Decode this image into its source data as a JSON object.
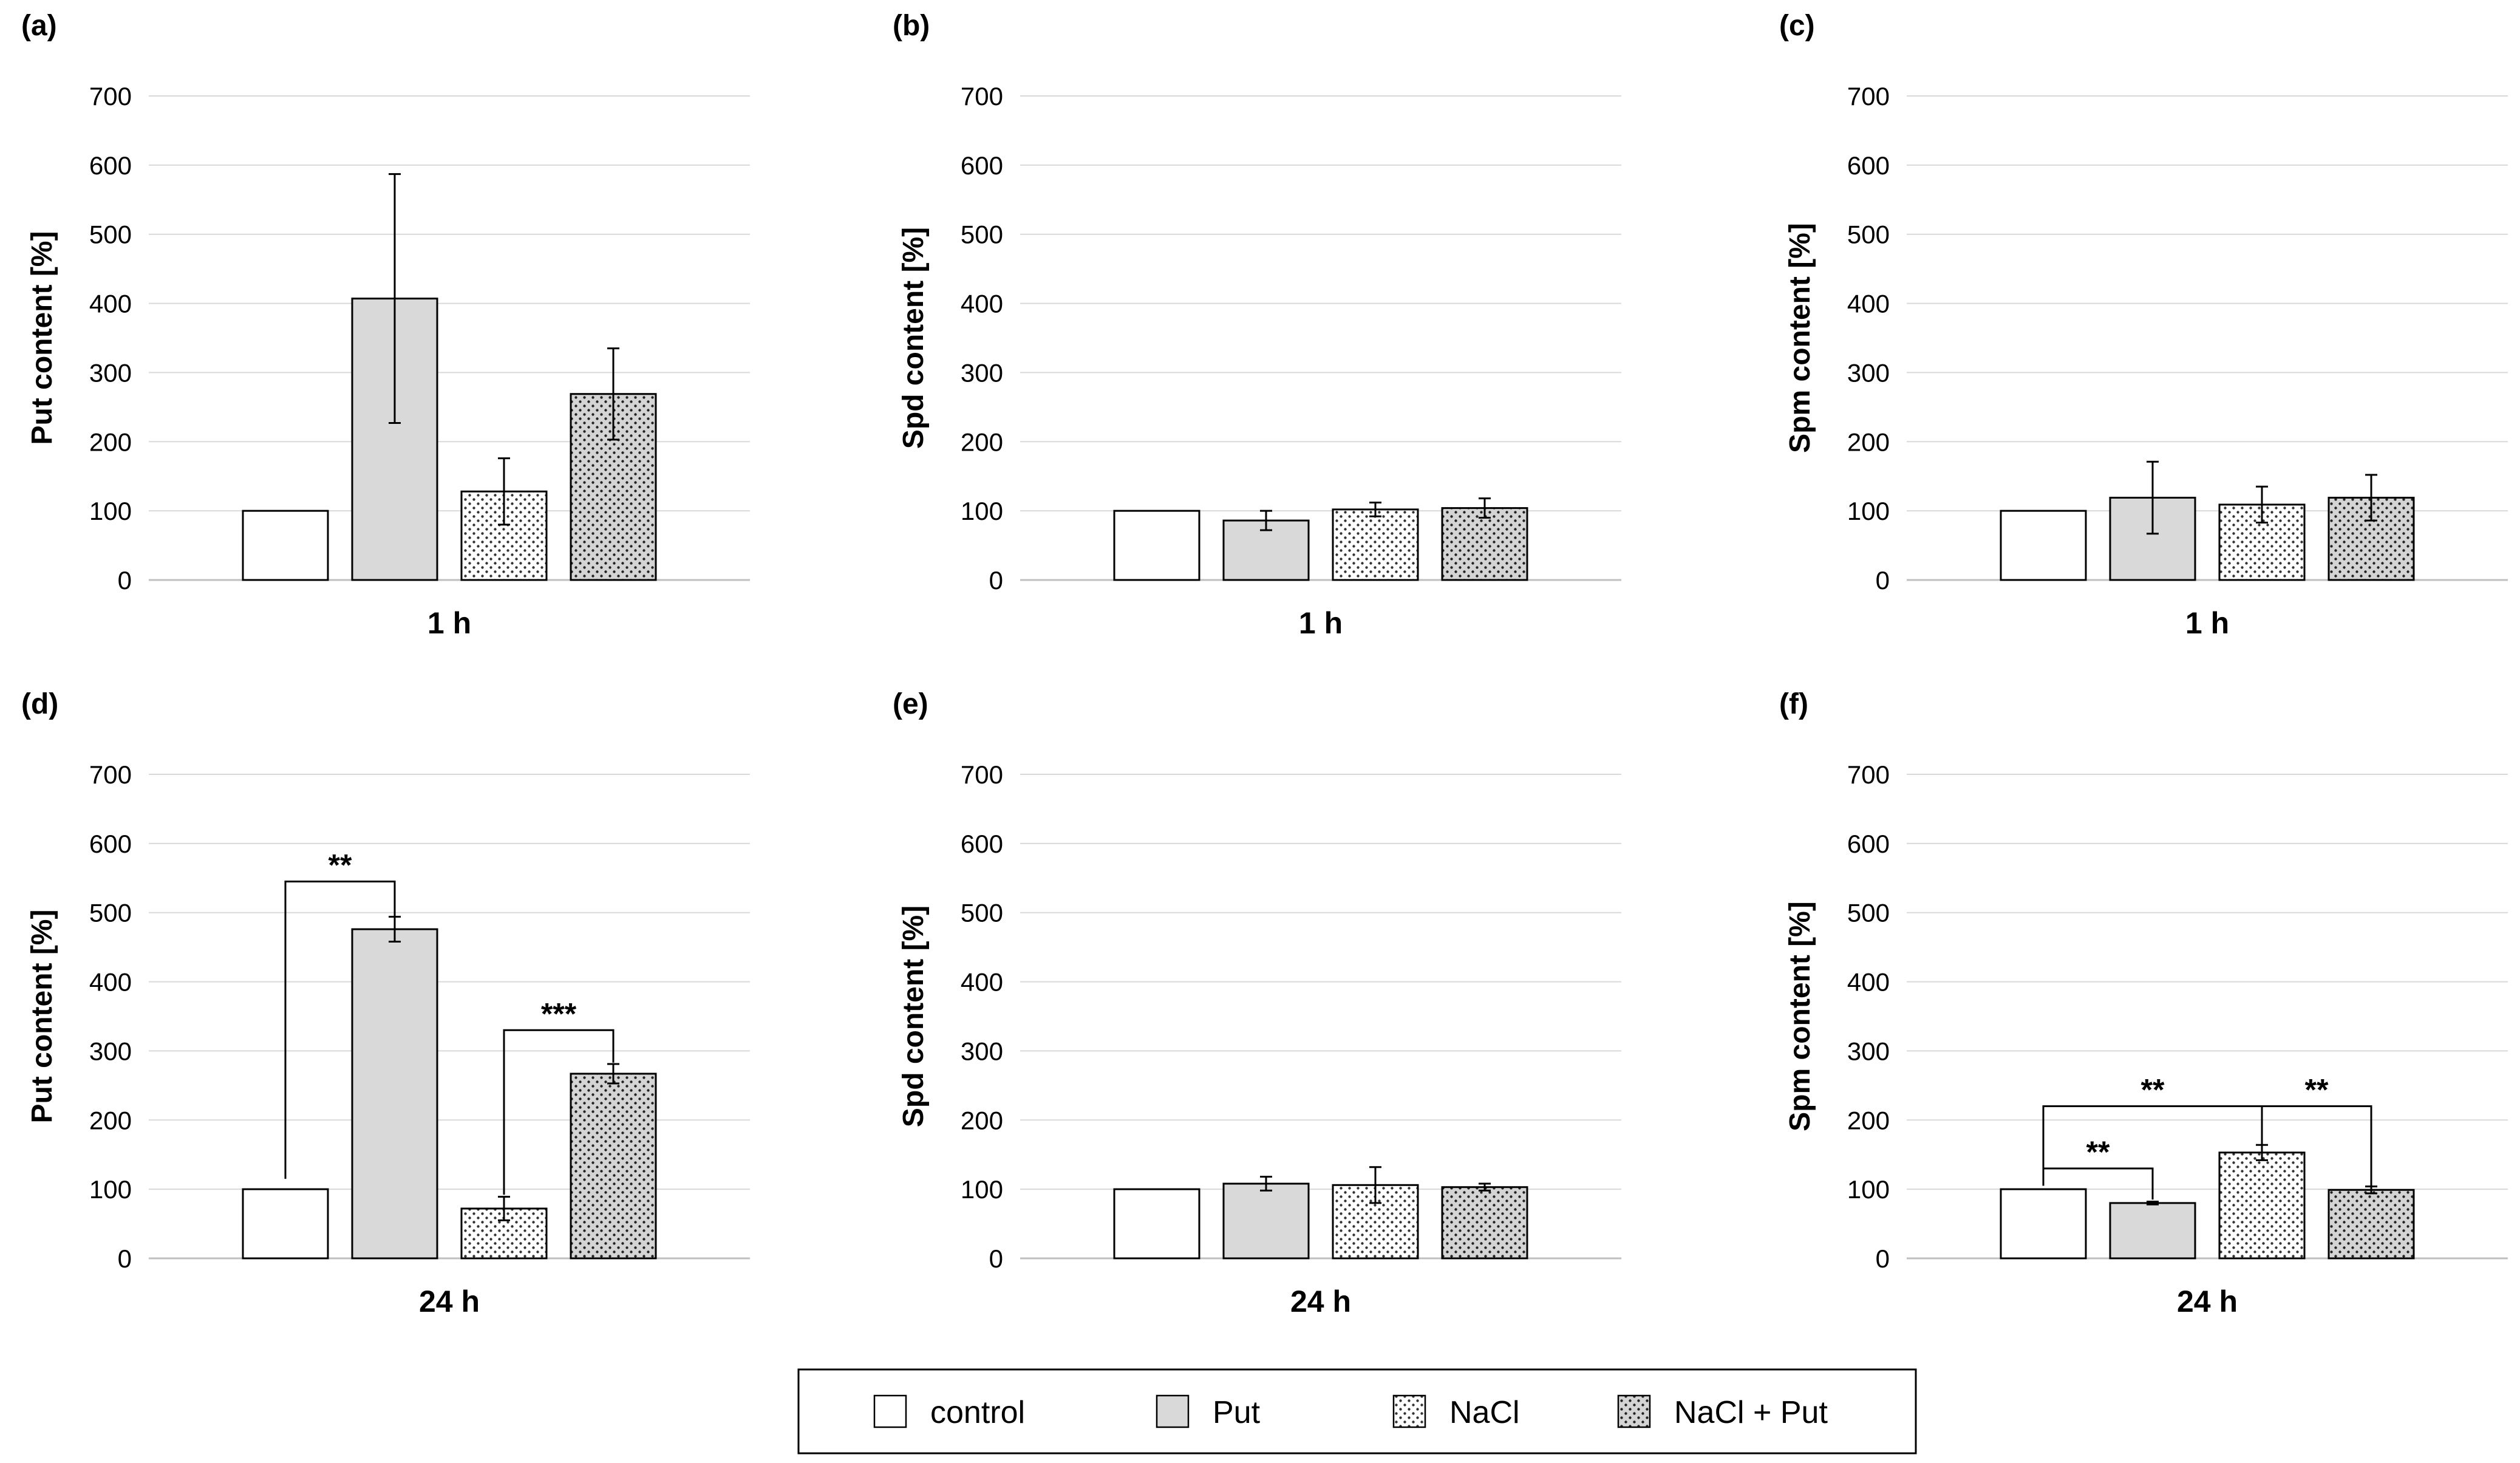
{
  "legend": {
    "items": [
      {
        "label": "control",
        "pattern": "white"
      },
      {
        "label": "Put",
        "pattern": "grey"
      },
      {
        "label": "NaCl",
        "pattern": "dots"
      },
      {
        "label": "NaCl + Put",
        "pattern": "greydots"
      }
    ]
  },
  "colors": {
    "bar_stroke": "#000000",
    "grey_fill": "#d9d9d9",
    "grid": "#d9d9d9",
    "axis": "#bfbfbf"
  },
  "chart_data": [
    {
      "panel": "(a)",
      "type": "bar",
      "title": "",
      "xlabel": "1 h",
      "ylabel": "Put content [%]",
      "ylim": [
        0,
        700
      ],
      "yticks": [
        0,
        100,
        200,
        300,
        400,
        500,
        600,
        700
      ],
      "categories": [
        "control",
        "Put",
        "NaCl",
        "NaCl + Put"
      ],
      "values": [
        100,
        407,
        128,
        269
      ],
      "errors": [
        0,
        180,
        48,
        66
      ],
      "significance": []
    },
    {
      "panel": "(b)",
      "type": "bar",
      "title": "",
      "xlabel": "1 h",
      "ylabel": "Spd content [%]",
      "ylim": [
        0,
        700
      ],
      "yticks": [
        0,
        100,
        200,
        300,
        400,
        500,
        600,
        700
      ],
      "categories": [
        "control",
        "Put",
        "NaCl",
        "NaCl + Put"
      ],
      "values": [
        100,
        86,
        102,
        104
      ],
      "errors": [
        0,
        14,
        10,
        14
      ],
      "significance": []
    },
    {
      "panel": "(c)",
      "type": "bar",
      "title": "",
      "xlabel": "1 h",
      "ylabel": "Spm content [%]",
      "ylim": [
        0,
        700
      ],
      "yticks": [
        0,
        100,
        200,
        300,
        400,
        500,
        600,
        700
      ],
      "categories": [
        "control",
        "Put",
        "NaCl",
        "NaCl + Put"
      ],
      "values": [
        100,
        119,
        109,
        119
      ],
      "errors": [
        0,
        52,
        26,
        33
      ],
      "significance": []
    },
    {
      "panel": "(d)",
      "type": "bar",
      "title": "",
      "xlabel": "24 h",
      "ylabel": "Put content [%]",
      "ylim": [
        0,
        700
      ],
      "yticks": [
        0,
        100,
        200,
        300,
        400,
        500,
        600,
        700
      ],
      "categories": [
        "control",
        "Put",
        "NaCl",
        "NaCl + Put"
      ],
      "values": [
        100,
        476,
        72,
        267
      ],
      "errors": [
        0,
        18,
        17,
        14
      ],
      "significance": [
        {
          "from": 0,
          "to": 1,
          "level": 545,
          "label": "**",
          "drop_from": 115,
          "drop_to": 495
        },
        {
          "from": 2,
          "to": 3,
          "level": 330,
          "label": "***",
          "drop_from": 92,
          "drop_to": 283
        }
      ]
    },
    {
      "panel": "(e)",
      "type": "bar",
      "title": "",
      "xlabel": "24 h",
      "ylabel": "Spd content [%]",
      "ylim": [
        0,
        700
      ],
      "yticks": [
        0,
        100,
        200,
        300,
        400,
        500,
        600,
        700
      ],
      "categories": [
        "control",
        "Put",
        "NaCl",
        "NaCl + Put"
      ],
      "values": [
        100,
        108,
        106,
        103
      ],
      "errors": [
        0,
        10,
        26,
        5
      ],
      "significance": []
    },
    {
      "panel": "(f)",
      "type": "bar",
      "title": "",
      "xlabel": "24 h",
      "ylabel": "Spm content [%]",
      "ylim": [
        0,
        700
      ],
      "yticks": [
        0,
        100,
        200,
        300,
        400,
        500,
        600,
        700
      ],
      "categories": [
        "control",
        "Put",
        "NaCl",
        "NaCl + Put"
      ],
      "values": [
        100,
        80,
        153,
        99
      ],
      "errors": [
        0,
        2,
        11,
        5
      ],
      "significance": [
        {
          "from": 0,
          "to": 2,
          "level": 220,
          "label": "**",
          "drop_from": 105,
          "drop_to": 165
        },
        {
          "from": 0,
          "to": 1,
          "level": 130,
          "label": "**",
          "drop_from": 105,
          "drop_to": 85
        },
        {
          "from": 2,
          "to": 3,
          "level": 220,
          "label": "**",
          "drop_from": 165,
          "drop_to": 105
        }
      ]
    }
  ]
}
